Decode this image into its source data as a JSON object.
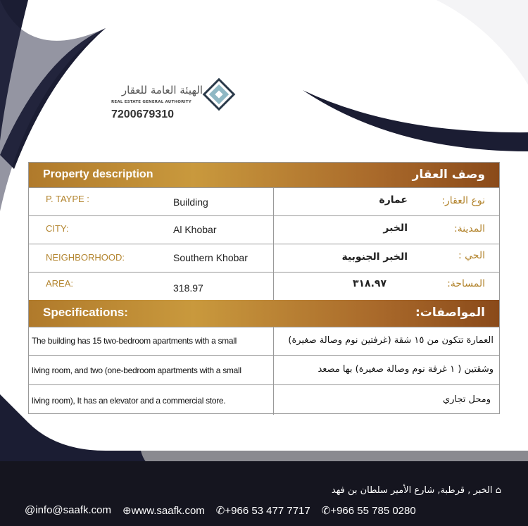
{
  "logo": {
    "arabic": "الهيئة العامة للعقار",
    "english": "REAL ESTATE GENERAL AUTHORITY",
    "license_number": "7200679310"
  },
  "property": {
    "header_en": "Property description",
    "header_ar": "وصف العقار",
    "rows": [
      {
        "label_en": "P. TAYPE :",
        "value_en": "Building",
        "label_ar": "نوع العقار:",
        "value_ar": "عمارة"
      },
      {
        "label_en": "CITY:",
        "value_en": "Al Khobar",
        "label_ar": "المدينة:",
        "value_ar": "الخبر"
      },
      {
        "label_en": "NEIGHBORHOOD:",
        "value_en": "Southern Khobar",
        "label_ar": "الحي :",
        "value_ar": "الخبر الجنوبية"
      },
      {
        "label_en": "AREA:",
        "value_en": "318.97",
        "label_ar": "المساحة:",
        "value_ar": "٣١٨.٩٧"
      }
    ]
  },
  "specs": {
    "header_en": "Specifications:",
    "header_ar": "المواصفات:",
    "lines_en": [
      "The building has 15 two-bedroom apartments with a small",
      "living room, and two (one-bedroom apartments with a small",
      "living room), It has an elevator and a commercial store."
    ],
    "lines_ar": [
      "العمارة تتكون من ١٥ شقة (غرفتين نوم وصالة صغيرة)",
      "وشقتين ( ١ غرفة نوم وصالة صغيرة) بها مصعد",
      "ومحل تجاري"
    ]
  },
  "footer": {
    "address": "الخبر , قرطبة, شارع الأمير سلطان بن فهد",
    "email": "info@saafk.com",
    "website": "www.saafk.com",
    "phone1": "+966 53 477 7717",
    "phone2": "+966 55 785 0280"
  },
  "colors": {
    "gold": "#b3852f",
    "navy": "#15151f",
    "brown": "#8a4a1a"
  }
}
